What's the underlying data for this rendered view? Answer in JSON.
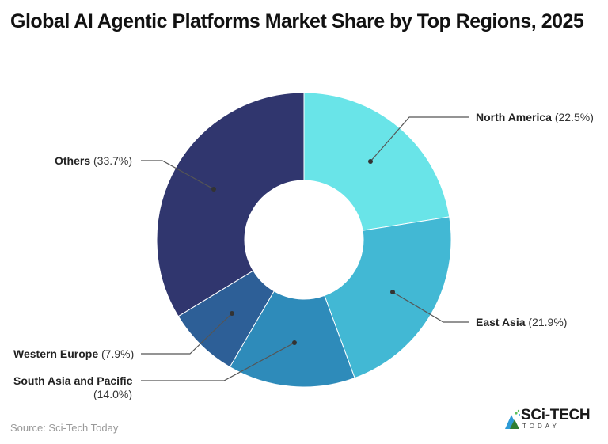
{
  "title": "Global AI Agentic Platforms Market Share by Top Regions, 2025",
  "source": "Source: Sci-Tech Today",
  "logo": {
    "main": "SCi-TECH",
    "sub": "TODAY"
  },
  "labels": {
    "north_america": {
      "name": "North America",
      "pct": "(22.5%)"
    },
    "east_asia": {
      "name": "East Asia",
      "pct": "(21.9%)"
    },
    "south_asia": {
      "name": "South Asia and Pacific",
      "pct": "(14.0%)"
    },
    "western_europe": {
      "name": "Western Europe",
      "pct": "(7.9%)"
    },
    "others": {
      "name": "Others",
      "pct": "(33.7%)"
    }
  },
  "chart_data": {
    "type": "pie",
    "subtype": "donut",
    "title": "Global AI Agentic Platforms Market Share by Top Regions, 2025",
    "categories": [
      "North America",
      "East Asia",
      "South Asia and Pacific",
      "Western Europe",
      "Others"
    ],
    "values": [
      22.5,
      21.9,
      14.0,
      7.9,
      33.7
    ],
    "unit": "%",
    "colors": [
      "#69e4e8",
      "#42b8d4",
      "#2e8bba",
      "#2d5f97",
      "#30366e"
    ],
    "start_angle": "12 o'clock, clockwise",
    "legend": "callout labels",
    "source": "Sci-Tech Today"
  }
}
